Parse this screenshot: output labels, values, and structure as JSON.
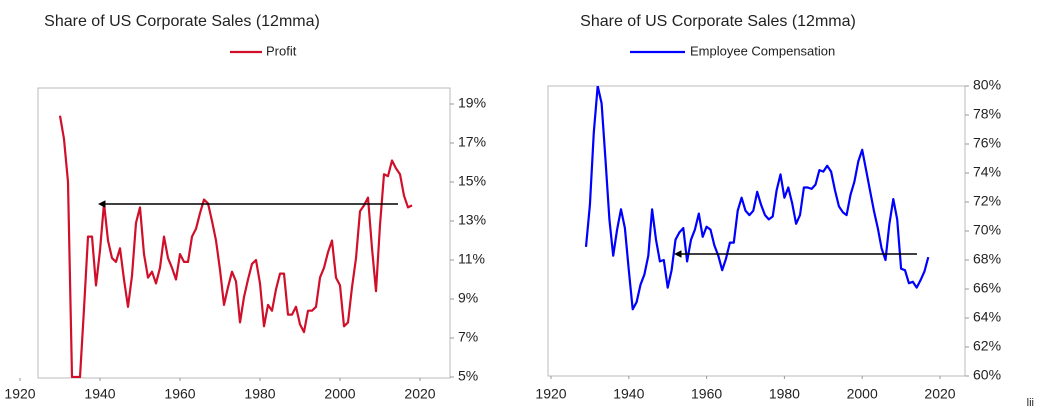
{
  "chart_data": [
    {
      "type": "line",
      "title": "Share of US Corporate Sales (12mma)",
      "series": [
        {
          "name": "Profit",
          "color": "#d0102b",
          "x": [
            1930,
            1931,
            1932,
            1933,
            1934,
            1935,
            1936,
            1937,
            1938,
            1939,
            1940,
            1941,
            1942,
            1943,
            1944,
            1945,
            1946,
            1947,
            1948,
            1949,
            1950,
            1951,
            1952,
            1953,
            1954,
            1955,
            1956,
            1957,
            1958,
            1959,
            1960,
            1961,
            1962,
            1963,
            1964,
            1965,
            1966,
            1967,
            1968,
            1969,
            1970,
            1971,
            1972,
            1973,
            1974,
            1975,
            1976,
            1977,
            1978,
            1979,
            1980,
            1981,
            1982,
            1983,
            1984,
            1985,
            1986,
            1987,
            1988,
            1989,
            1990,
            1991,
            1992,
            1993,
            1994,
            1995,
            1996,
            1997,
            1998,
            1999,
            2000,
            2001,
            2002,
            2003,
            2004,
            2005,
            2006,
            2007,
            2008,
            2009,
            2010,
            2011,
            2012,
            2013,
            2014,
            2015,
            2016,
            2017,
            2018
          ],
          "values": [
            18.4,
            17.2,
            15.0,
            5.0,
            5.0,
            5.0,
            8.5,
            12.2,
            12.2,
            9.7,
            11.5,
            13.9,
            12.0,
            11.1,
            10.9,
            11.6,
            10.0,
            8.6,
            10.2,
            12.9,
            13.7,
            11.3,
            10.1,
            10.4,
            9.8,
            10.6,
            12.2,
            11.1,
            10.6,
            10.0,
            11.3,
            10.9,
            10.9,
            12.2,
            12.6,
            13.4,
            14.1,
            13.9,
            13.0,
            12.0,
            10.5,
            8.7,
            9.6,
            10.4,
            9.9,
            7.8,
            9.1,
            10.0,
            10.8,
            11.0,
            9.8,
            7.6,
            8.7,
            8.4,
            9.5,
            10.3,
            10.3,
            8.2,
            8.2,
            8.6,
            7.7,
            7.3,
            8.4,
            8.4,
            8.6,
            10.1,
            10.6,
            11.4,
            12.0,
            10.1,
            9.7,
            7.6,
            7.8,
            9.6,
            11.1,
            13.5,
            13.8,
            14.2,
            11.6,
            9.4,
            12.8,
            15.4,
            15.3,
            16.1,
            15.7,
            15.4,
            14.3,
            13.7,
            13.8
          ]
        }
      ],
      "xlim": [
        1920,
        2020
      ],
      "xticks": [
        1920,
        1940,
        1960,
        1980,
        2000,
        2020
      ],
      "ylim": [
        5,
        20
      ],
      "yticks": [
        {
          "value": 5,
          "label": "5%"
        },
        {
          "value": 7,
          "label": "7%"
        },
        {
          "value": 9,
          "label": "9%"
        },
        {
          "value": 11,
          "label": "11%"
        },
        {
          "value": 13,
          "label": "13%"
        },
        {
          "value": 15,
          "label": "15%"
        },
        {
          "value": 17,
          "label": "17%"
        },
        {
          "value": 19,
          "label": "19%"
        }
      ],
      "grid": false,
      "legend": "top"
    },
    {
      "type": "line",
      "title": "Share of US Corporate Sales (12mma)",
      "series": [
        {
          "name": "Employee Compensation",
          "color": "#0000ff",
          "x": [
            1929,
            1930,
            1931,
            1932,
            1933,
            1934,
            1935,
            1936,
            1937,
            1938,
            1939,
            1940,
            1941,
            1942,
            1943,
            1944,
            1945,
            1946,
            1947,
            1948,
            1949,
            1950,
            1951,
            1952,
            1953,
            1954,
            1955,
            1956,
            1957,
            1958,
            1959,
            1960,
            1961,
            1962,
            1963,
            1964,
            1965,
            1966,
            1967,
            1968,
            1969,
            1970,
            1971,
            1972,
            1973,
            1974,
            1975,
            1976,
            1977,
            1978,
            1979,
            1980,
            1981,
            1982,
            1983,
            1984,
            1985,
            1986,
            1987,
            1988,
            1989,
            1990,
            1991,
            1992,
            1993,
            1994,
            1995,
            1996,
            1997,
            1998,
            1999,
            2000,
            2001,
            2002,
            2003,
            2004,
            2005,
            2006,
            2007,
            2008,
            2009,
            2010,
            2011,
            2012,
            2013,
            2014,
            2015,
            2016,
            2017
          ],
          "values": [
            68.9,
            71.8,
            76.8,
            80.0,
            78.8,
            74.9,
            70.8,
            68.3,
            70.1,
            71.5,
            70.2,
            67.3,
            64.6,
            65.1,
            66.3,
            67.0,
            68.3,
            71.5,
            69.4,
            67.9,
            68.0,
            66.1,
            67.3,
            69.4,
            69.9,
            70.2,
            67.9,
            69.4,
            70.1,
            71.2,
            69.6,
            70.3,
            70.1,
            69.0,
            68.3,
            67.3,
            68.1,
            69.2,
            69.2,
            71.4,
            72.3,
            71.4,
            71.1,
            71.4,
            72.7,
            71.8,
            71.1,
            70.8,
            71.0,
            72.8,
            73.9,
            72.3,
            73.0,
            71.9,
            70.5,
            71.1,
            73.0,
            73.0,
            72.9,
            73.2,
            74.2,
            74.1,
            74.5,
            74.1,
            72.8,
            71.7,
            71.3,
            71.1,
            72.5,
            73.4,
            74.8,
            75.6,
            74.2,
            72.8,
            71.4,
            70.2,
            68.8,
            68.0,
            70.5,
            72.2,
            70.8,
            67.4,
            67.3,
            66.4,
            66.5,
            66.1,
            66.6,
            67.2,
            68.2
          ]
        }
      ],
      "xlim": [
        1920,
        2020
      ],
      "xticks": [
        1920,
        1940,
        1960,
        1980,
        2000,
        2020
      ],
      "ylim": [
        60,
        80
      ],
      "yticks": [
        {
          "value": 60,
          "label": "60%"
        },
        {
          "value": 62,
          "label": "62%"
        },
        {
          "value": 64,
          "label": "64%"
        },
        {
          "value": 66,
          "label": "66%"
        },
        {
          "value": 68,
          "label": "68%"
        },
        {
          "value": 70,
          "label": "70%"
        },
        {
          "value": 72,
          "label": "72%"
        },
        {
          "value": 74,
          "label": "74%"
        },
        {
          "value": 76,
          "label": "76%"
        },
        {
          "value": 78,
          "label": "78%"
        },
        {
          "value": 80,
          "label": "80%"
        }
      ],
      "grid": false,
      "legend": "top"
    }
  ],
  "footer": "lii"
}
